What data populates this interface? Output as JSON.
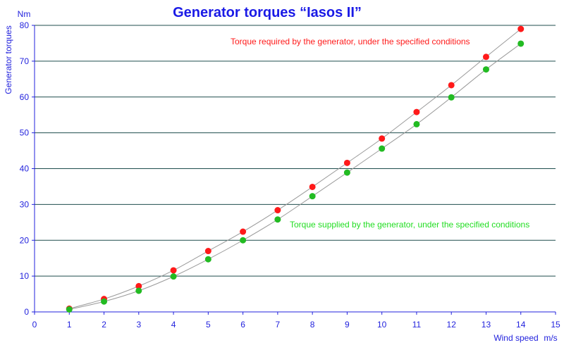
{
  "colors": {
    "axis_text": "#2222dd",
    "title": "#1a1ae6",
    "grid": "#1f4d4d",
    "curve": "#9a9a9a",
    "required": "#ff1a1a",
    "supplied": "#22bb22",
    "supplied_text": "#22dd22"
  },
  "chart_data": {
    "type": "scatter",
    "title": "Generator torques “Iasos II”",
    "ylabel": "Generator torques",
    "yunit": "Nm",
    "xlabel": "Wind speed",
    "xunit": "m/s",
    "xlim": [
      0,
      15
    ],
    "ylim": [
      0,
      80
    ],
    "xticks": [
      0,
      1,
      2,
      3,
      4,
      5,
      6,
      7,
      8,
      9,
      10,
      11,
      12,
      13,
      14,
      15
    ],
    "yticks": [
      0,
      10,
      20,
      30,
      40,
      50,
      60,
      70,
      80
    ],
    "grid": "horizontal",
    "series": [
      {
        "name": "Torque required by the generator, under the specified conditions",
        "color": "red",
        "x": [
          1,
          2,
          3,
          4,
          5,
          6,
          7,
          8,
          9,
          10,
          11,
          12,
          13,
          14
        ],
        "y": [
          0.9,
          3.6,
          7.2,
          11.6,
          17.0,
          22.4,
          28.4,
          34.9,
          41.6,
          48.4,
          55.8,
          63.3,
          71.2,
          79.0
        ]
      },
      {
        "name": "Torque supplied by the generator, under the specified conditions",
        "color": "green",
        "x": [
          1,
          2,
          3,
          4,
          5,
          6,
          7,
          8,
          9,
          10,
          11,
          12,
          13,
          14
        ],
        "y": [
          0.7,
          2.9,
          5.9,
          9.9,
          14.7,
          20.0,
          25.8,
          32.3,
          38.9,
          45.6,
          52.4,
          59.9,
          67.7,
          74.9
        ]
      }
    ]
  }
}
